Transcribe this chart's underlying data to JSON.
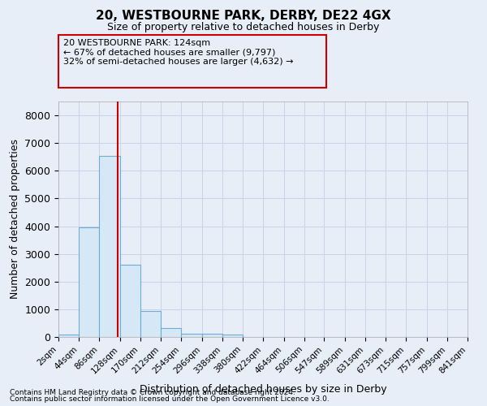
{
  "title1": "20, WESTBOURNE PARK, DERBY, DE22 4GX",
  "title2": "Size of property relative to detached houses in Derby",
  "xlabel": "Distribution of detached houses by size in Derby",
  "ylabel": "Number of detached properties",
  "footer1": "Contains HM Land Registry data © Crown copyright and database right 2024.",
  "footer2": "Contains public sector information licensed under the Open Government Licence v3.0.",
  "annotation_lines": [
    "20 WESTBOURNE PARK: 124sqm",
    "← 67% of detached houses are smaller (9,797)",
    "32% of semi-detached houses are larger (4,632) →"
  ],
  "bin_edges": [
    2,
    44,
    86,
    128,
    170,
    212,
    254,
    296,
    338,
    380,
    422,
    464,
    506,
    547,
    589,
    631,
    673,
    715,
    757,
    799,
    841
  ],
  "bar_heights": [
    100,
    3950,
    6550,
    2600,
    950,
    310,
    130,
    110,
    80,
    0,
    0,
    0,
    0,
    0,
    0,
    0,
    0,
    0,
    0,
    0
  ],
  "bar_color": "#d6e8f5",
  "bar_edge_color": "#6aadd5",
  "property_size": 124,
  "red_line_color": "#cc0000",
  "annotation_box_edge_color": "#cc0000",
  "background_color": "#e8eef8",
  "grid_color": "#c8d4e8",
  "yticks": [
    0,
    1000,
    2000,
    3000,
    4000,
    5000,
    6000,
    7000,
    8000
  ],
  "ylim": [
    0,
    8500
  ],
  "xlim_left": 2,
  "xlim_right": 841
}
